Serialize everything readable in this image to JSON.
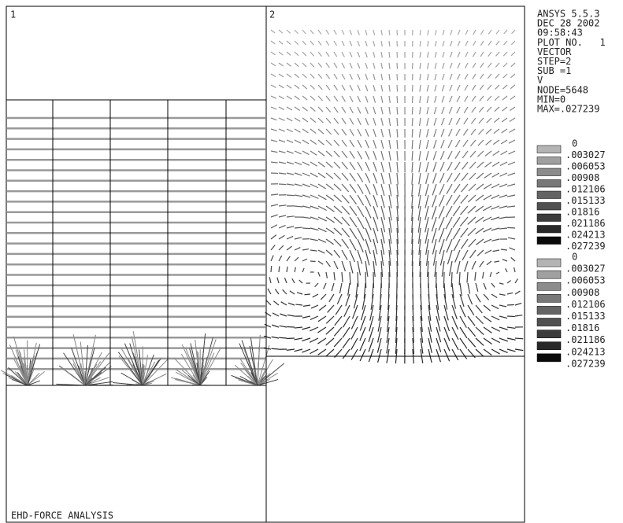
{
  "panels": [
    {
      "label": "1"
    },
    {
      "label": "2"
    }
  ],
  "info": [
    "ANSYS 5.5.3",
    "DEC 28 2002",
    "09:58:43",
    "PLOT NO.   1",
    "VECTOR",
    "STEP=2",
    "SUB =1",
    "V",
    "NODE=5648",
    "MIN=0",
    "MAX=.027239"
  ],
  "legends": [
    {
      "labels": [
        "0",
        ".003027",
        ".006053",
        ".00908",
        ".012106",
        ".015133",
        ".01816",
        ".021186",
        ".024213",
        ".027239"
      ],
      "colors": [
        "#b4b4b4",
        "#a0a0a0",
        "#8c8c8c",
        "#787878",
        "#646464",
        "#505050",
        "#3c3c3c",
        "#282828",
        "#0a0a0a"
      ]
    },
    {
      "labels": [
        "0",
        ".003027",
        ".006053",
        ".00908",
        ".012106",
        ".015133",
        ".01816",
        ".021186",
        ".024213",
        ".027239"
      ],
      "colors": [
        "#b4b4b4",
        "#a0a0a0",
        "#8c8c8c",
        "#787878",
        "#646464",
        "#505050",
        "#3c3c3c",
        "#282828",
        "#0a0a0a"
      ]
    }
  ],
  "footer": "EHD-FORCE ANALYSIS"
}
